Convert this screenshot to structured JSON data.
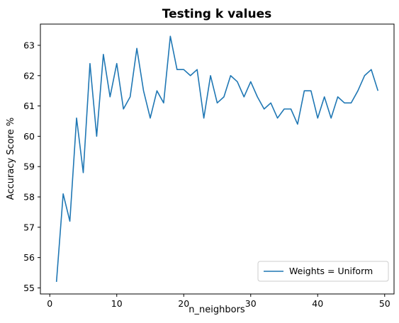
{
  "chart_data": {
    "type": "line",
    "title": "Testing k values",
    "xlabel": "n_neighbors",
    "ylabel": "Accuracy Score %",
    "xlim": [
      -1.4,
      51.4
    ],
    "ylim": [
      54.8,
      63.7
    ],
    "xticks": [
      0,
      10,
      20,
      30,
      40,
      50
    ],
    "yticks": [
      55,
      56,
      57,
      58,
      59,
      60,
      61,
      62,
      63
    ],
    "grid": false,
    "legend_position": "lower right",
    "series": [
      {
        "name": "Weights = Uniform",
        "color": "#1f77b4",
        "x": [
          1,
          2,
          3,
          4,
          5,
          6,
          7,
          8,
          9,
          10,
          11,
          12,
          13,
          14,
          15,
          16,
          17,
          18,
          19,
          20,
          21,
          22,
          23,
          24,
          25,
          26,
          27,
          28,
          29,
          30,
          31,
          32,
          33,
          34,
          35,
          36,
          37,
          38,
          39,
          40,
          41,
          42,
          43,
          44,
          45,
          46,
          47,
          48,
          49
        ],
        "y": [
          55.2,
          58.1,
          57.2,
          60.6,
          58.8,
          62.4,
          60.0,
          62.7,
          61.3,
          62.4,
          60.9,
          61.3,
          62.9,
          61.5,
          60.6,
          61.5,
          61.1,
          63.3,
          62.2,
          62.2,
          62.0,
          62.2,
          60.6,
          62.0,
          61.1,
          61.3,
          62.0,
          61.8,
          61.3,
          61.8,
          61.3,
          60.9,
          61.1,
          60.6,
          60.9,
          60.9,
          60.4,
          61.5,
          61.5,
          60.6,
          61.3,
          60.6,
          61.3,
          61.1,
          61.1,
          61.5,
          62.0,
          62.2,
          61.5
        ]
      }
    ]
  }
}
